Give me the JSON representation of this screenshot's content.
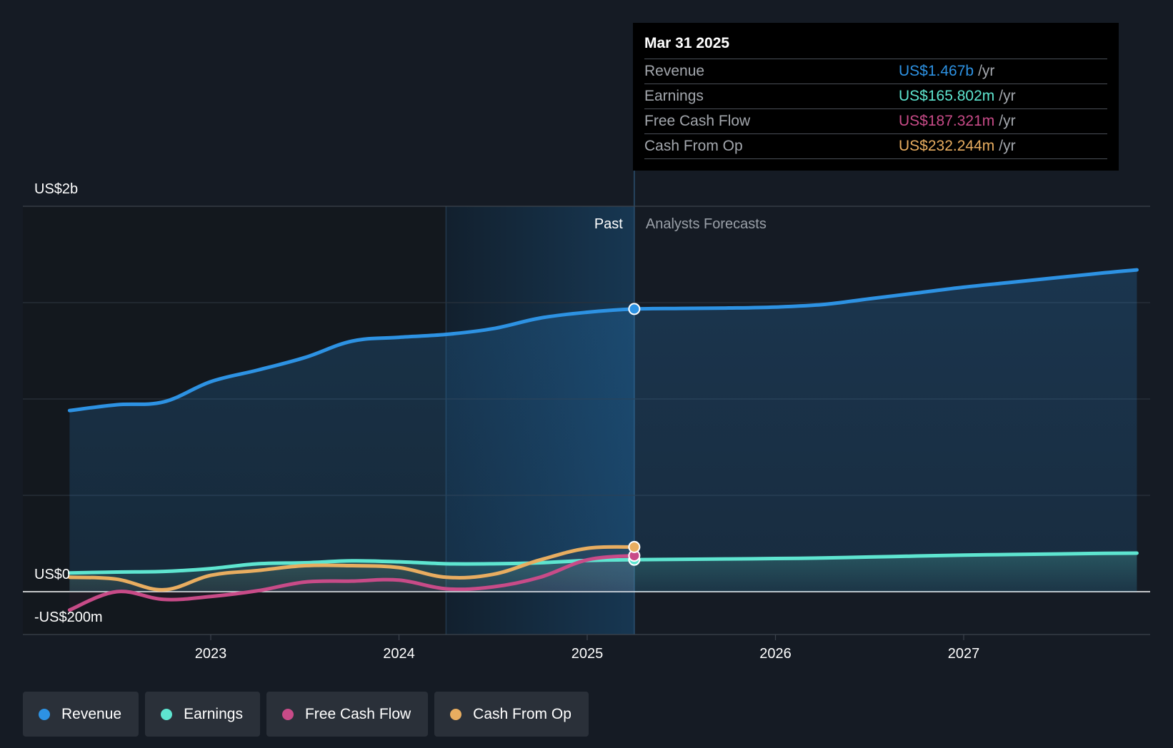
{
  "chart_data": {
    "type": "line",
    "y_axis": {
      "top_label": "US$2b",
      "zero_label": "US$0",
      "bottom_label": "-US$200m",
      "ylim": [
        -200,
        2000
      ],
      "grid": true
    },
    "x_axis": {
      "ticks": [
        "2023",
        "2024",
        "2025",
        "2026",
        "2027"
      ],
      "xlim": [
        2022.0,
        2028.0
      ]
    },
    "regions": {
      "past_label": "Past",
      "forecast_label": "Analysts Forecasts",
      "split_x": 2025.25,
      "highlight_start_x": 2024.25
    },
    "series": [
      {
        "name": "Revenue",
        "color": "#2d92e3",
        "area": true,
        "x": [
          2022.25,
          2022.5,
          2022.75,
          2023.0,
          2023.25,
          2023.5,
          2023.75,
          2024.0,
          2024.25,
          2024.5,
          2024.75,
          2025.0,
          2025.25,
          2025.5,
          2025.75,
          2026.0,
          2026.25,
          2026.5,
          2026.75,
          2027.0,
          2027.25,
          2027.5,
          2027.75,
          2027.92
        ],
        "y": [
          940,
          970,
          985,
          1090,
          1150,
          1215,
          1300,
          1320,
          1335,
          1365,
          1420,
          1450,
          1467,
          1470,
          1472,
          1477,
          1490,
          1520,
          1550,
          1580,
          1605,
          1630,
          1655,
          1670
        ]
      },
      {
        "name": "Earnings",
        "color": "#5ee5d0",
        "area": true,
        "x": [
          2022.25,
          2022.5,
          2022.75,
          2023.0,
          2023.25,
          2023.5,
          2023.75,
          2024.0,
          2024.25,
          2024.5,
          2024.75,
          2025.0,
          2025.25,
          2025.5,
          2025.75,
          2026.0,
          2026.25,
          2026.5,
          2026.75,
          2027.0,
          2027.25,
          2027.5,
          2027.75,
          2027.92
        ],
        "y": [
          97,
          102,
          105,
          120,
          145,
          150,
          160,
          155,
          145,
          145,
          150,
          162,
          166,
          168,
          170,
          172,
          175,
          180,
          185,
          190,
          193,
          196,
          199,
          200
        ]
      },
      {
        "name": "Free Cash Flow",
        "color": "#c84b88",
        "area": false,
        "x": [
          2022.25,
          2022.5,
          2022.75,
          2023.0,
          2023.25,
          2023.5,
          2023.75,
          2024.0,
          2024.25,
          2024.5,
          2024.75,
          2025.0,
          2025.25
        ],
        "y": [
          -95,
          0,
          -40,
          -25,
          5,
          50,
          55,
          60,
          15,
          25,
          75,
          165,
          187
        ]
      },
      {
        "name": "Cash From Op",
        "color": "#e8ad60",
        "area": false,
        "x": [
          2022.25,
          2022.5,
          2022.75,
          2023.0,
          2023.25,
          2023.5,
          2023.75,
          2024.0,
          2024.25,
          2024.5,
          2024.75,
          2025.0,
          2025.25
        ],
        "y": [
          75,
          65,
          10,
          85,
          110,
          135,
          135,
          125,
          75,
          90,
          165,
          225,
          232
        ]
      }
    ]
  },
  "tooltip": {
    "date": "Mar 31 2025",
    "rows": [
      {
        "name": "Revenue",
        "value": "US$1.467b",
        "unit": "/yr",
        "color": "#2d92e3"
      },
      {
        "name": "Earnings",
        "value": "US$165.802m",
        "unit": "/yr",
        "color": "#5ee5d0"
      },
      {
        "name": "Free Cash Flow",
        "value": "US$187.321m",
        "unit": "/yr",
        "color": "#c84b88"
      },
      {
        "name": "Cash From Op",
        "value": "US$232.244m",
        "unit": "/yr",
        "color": "#e8ad60"
      }
    ]
  },
  "legend": [
    {
      "label": "Revenue",
      "color": "#2d92e3"
    },
    {
      "label": "Earnings",
      "color": "#5ee5d0"
    },
    {
      "label": "Free Cash Flow",
      "color": "#c84b88"
    },
    {
      "label": "Cash From Op",
      "color": "#e8ad60"
    }
  ]
}
